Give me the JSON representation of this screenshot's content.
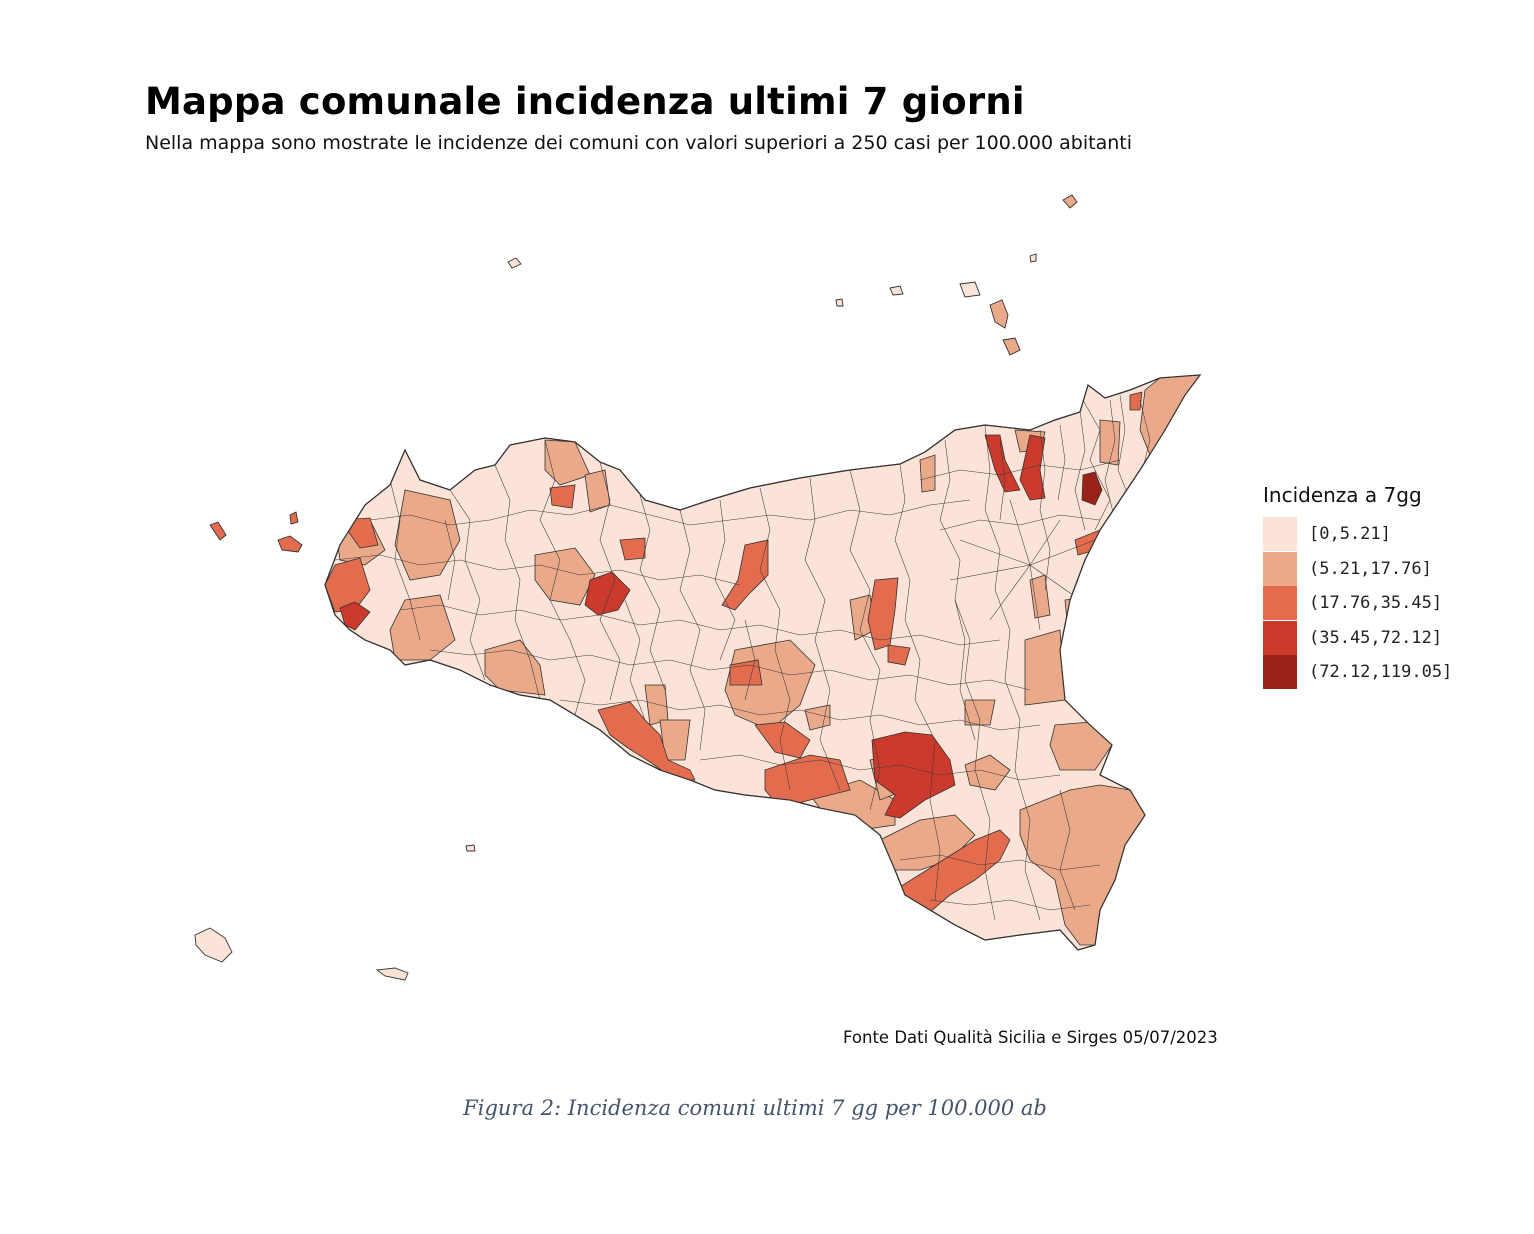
{
  "figure": {
    "title": "Mappa comunale incidenza ultimi 7 giorni",
    "subtitle": "Nella mappa sono mostrate le incidenze dei comuni con valori superiori a 250 casi per 100.000 abitanti",
    "source": "Fonte Dati Qualità Sicilia e Sirges 05/07/2023",
    "caption": "Figura 2: Incidenza comuni ultimi 7 gg per 100.000 ab"
  },
  "legend": {
    "title": "Incidenza a 7gg",
    "classes": [
      {
        "label": "[0,5.21]",
        "color": "#fbe4d7"
      },
      {
        "label": "(5.21,17.76]",
        "color": "#eaa989"
      },
      {
        "label": "(17.76,35.45]",
        "color": "#e36c4e"
      },
      {
        "label": "(35.45,72.12]",
        "color": "#cc3a2c"
      },
      {
        "label": "(72.12,119.05]",
        "color": "#9a2218"
      }
    ]
  },
  "map": {
    "region": "Sicilia",
    "stroke_color": "#3a3a3a"
  }
}
